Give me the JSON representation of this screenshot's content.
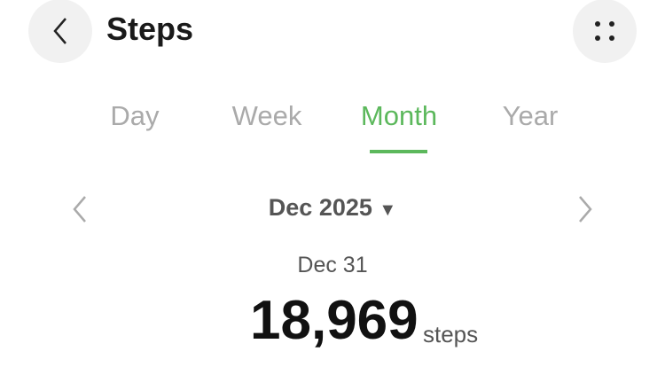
{
  "header": {
    "title": "Steps",
    "back_icon": "chevron-left-icon",
    "menu_icon": "grid-dots-icon"
  },
  "tabs": [
    {
      "label": "Day"
    },
    {
      "label": "Week"
    },
    {
      "label": "Month",
      "active": true
    },
    {
      "label": "Year"
    }
  ],
  "accent": "#5cb85c",
  "period": {
    "label": "Dec 2025",
    "dropdown_icon": "triangle-down-icon"
  },
  "summary": {
    "date": "Dec 31",
    "value": "18,969",
    "unit": "steps"
  }
}
